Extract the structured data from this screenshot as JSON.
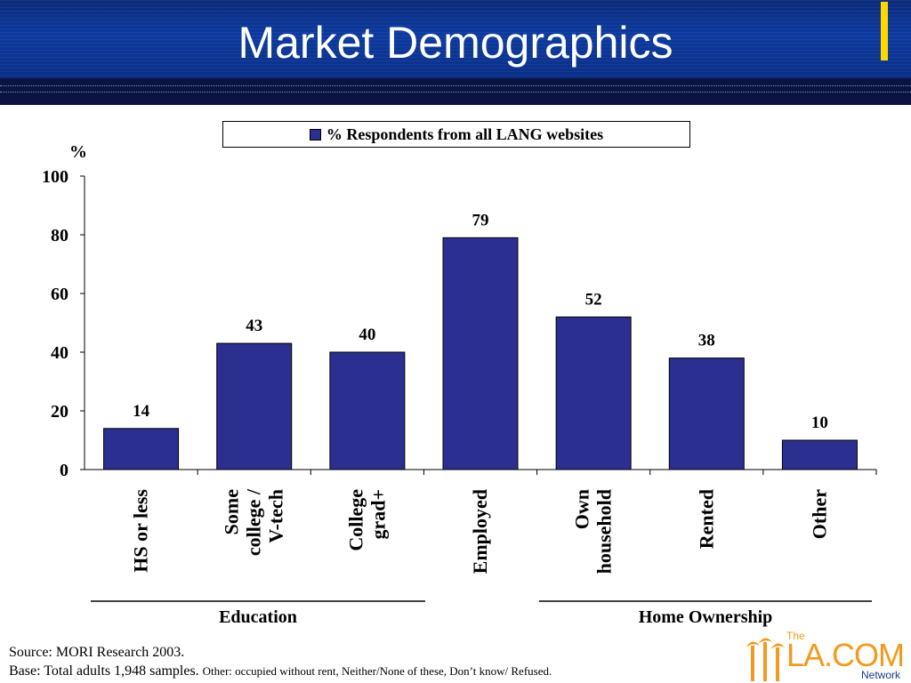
{
  "header": {
    "title": "Market Demographics"
  },
  "colors": {
    "bar": "#2b2f8f",
    "banner": "#0d3aa0",
    "accent": "#ffd800",
    "logo": "#f39a1e"
  },
  "chart_data": {
    "type": "bar",
    "legend": "% Respondents from all LANG websites",
    "ylabel": "%",
    "ylim": [
      0,
      100
    ],
    "yticks": [
      0,
      20,
      40,
      60,
      80,
      100
    ],
    "categories": [
      [
        "HS or less"
      ],
      [
        "Some",
        "college /",
        "V-tech"
      ],
      [
        "College",
        "grad+"
      ],
      [
        "Employed"
      ],
      [
        "Own",
        "household"
      ],
      [
        "Rented"
      ],
      [
        "Other"
      ]
    ],
    "values": [
      14,
      43,
      40,
      79,
      52,
      38,
      10
    ],
    "groups": [
      "Education",
      "Home Ownership"
    ]
  },
  "footer": {
    "source": "Source: MORI Research 2003.",
    "base": "Base: Total adults 1,948 samples.",
    "note": "Other: occupied without rent, Neither/None of these, Don’t know/ Refused."
  },
  "logo": {
    "the": "The",
    "name": "LA.COM",
    "network": "Network"
  }
}
